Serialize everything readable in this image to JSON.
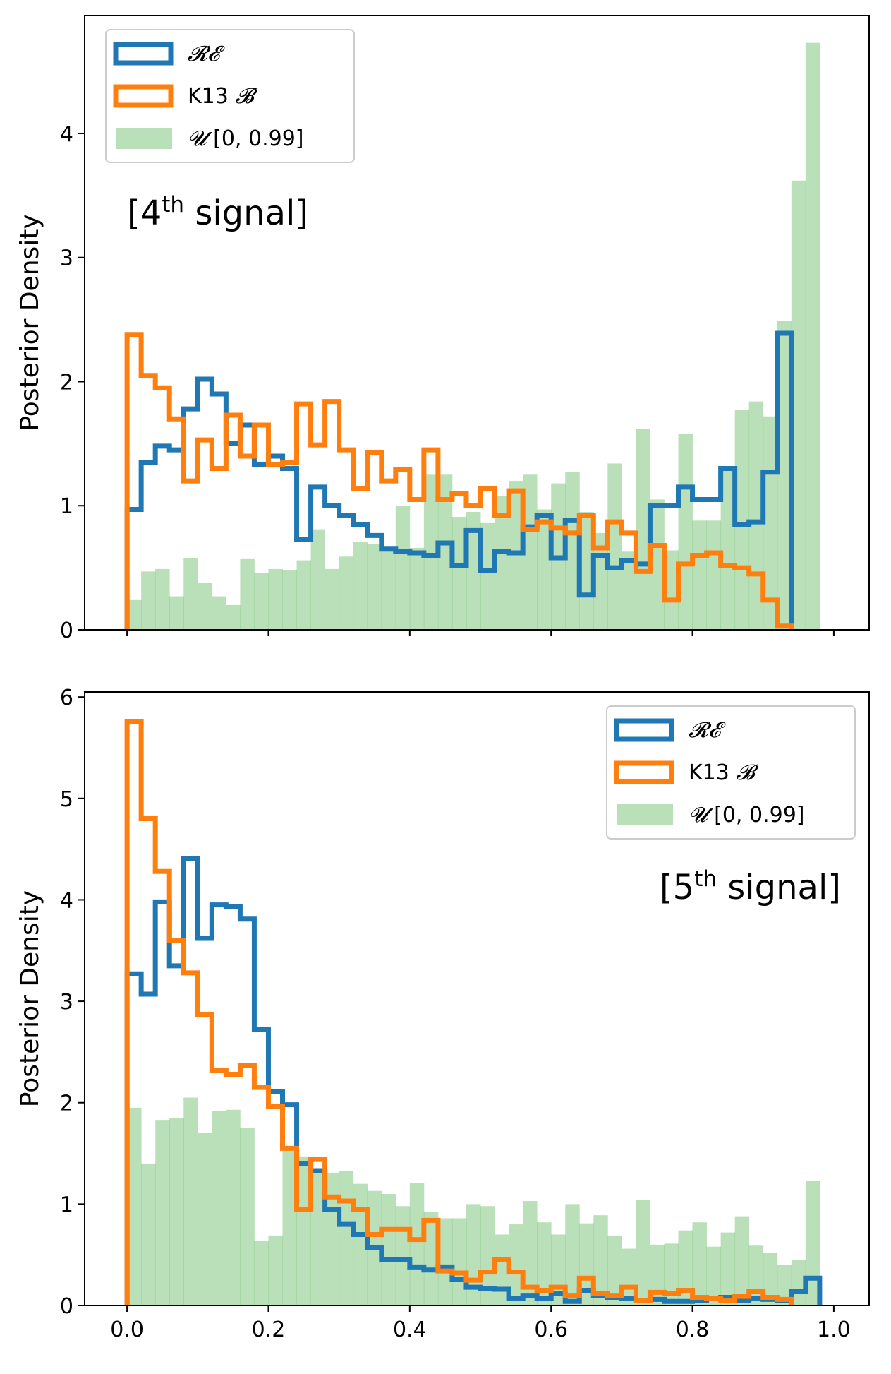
{
  "colors": {
    "re": "#1f77b4",
    "k13": "#ff7f0e",
    "uniform": "#2ca02c"
  },
  "chart_data": [
    {
      "type": "histogram",
      "title": "",
      "annotation": {
        "prefix": "[4",
        "sup": "th",
        "suffix": " signal]"
      },
      "xlabel": "",
      "ylabel": "Posterior Density",
      "xlim": [
        -0.06,
        1.05
      ],
      "ylim": [
        0,
        4.95
      ],
      "xticks": [
        0.0,
        0.2,
        0.4,
        0.6,
        0.8,
        1.0
      ],
      "show_xtick_labels": false,
      "yticks": [
        0,
        1,
        2,
        3,
        4
      ],
      "legend_position": "top-left",
      "legend": [
        {
          "key": "re",
          "label": "𝓡𝓔",
          "style": "step"
        },
        {
          "key": "k13",
          "label_prefix": "K13 ",
          "label_math": "𝓑",
          "style": "step"
        },
        {
          "key": "uniform",
          "label_math": "𝓤",
          "label_suffix": " [0, 0.99]",
          "style": "fill"
        }
      ],
      "series": [
        {
          "key": "re",
          "name": "𝓡𝓔",
          "histtype": "step",
          "bin_start": 0.0,
          "bin_width": 0.02,
          "values": [
            0.97,
            1.35,
            1.48,
            1.45,
            1.78,
            2.02,
            1.9,
            1.5,
            1.65,
            1.33,
            1.4,
            1.3,
            0.73,
            1.15,
            1.0,
            0.92,
            0.85,
            0.76,
            0.65,
            0.63,
            0.62,
            0.6,
            0.7,
            0.52,
            0.8,
            0.48,
            0.63,
            0.62,
            0.83,
            0.92,
            0.58,
            0.88,
            0.28,
            0.6,
            0.5,
            0.56,
            0.53,
            1.0,
            1.0,
            1.15,
            1.05,
            1.05,
            1.3,
            0.85,
            0.87,
            1.27,
            2.39
          ]
        },
        {
          "key": "k13",
          "name": "K13 𝓑",
          "histtype": "step",
          "bin_start": 0.0,
          "bin_width": 0.02,
          "values": [
            2.38,
            2.05,
            1.95,
            1.7,
            1.2,
            1.53,
            1.3,
            1.73,
            1.4,
            1.65,
            1.33,
            1.35,
            1.82,
            1.49,
            1.84,
            1.45,
            1.14,
            1.43,
            1.2,
            1.29,
            1.05,
            1.45,
            1.05,
            1.1,
            1.0,
            1.14,
            0.92,
            1.12,
            0.81,
            0.87,
            0.82,
            0.78,
            0.92,
            0.66,
            0.87,
            0.78,
            0.47,
            0.68,
            0.24,
            0.53,
            0.6,
            0.62,
            0.52,
            0.5,
            0.45,
            0.24,
            0.03
          ]
        },
        {
          "key": "uniform",
          "name": "𝓤 [0, 0.99]",
          "histtype": "stepfilled",
          "bin_start": 0.0,
          "bin_width": 0.02,
          "opacity": 0.33,
          "values": [
            0.24,
            0.47,
            0.49,
            0.27,
            0.58,
            0.38,
            0.27,
            0.2,
            0.57,
            0.46,
            0.49,
            0.48,
            0.56,
            0.81,
            0.49,
            0.59,
            0.71,
            0.69,
            0.64,
            1.0,
            0.66,
            1.25,
            1.25,
            0.91,
            0.95,
            0.86,
            1.08,
            1.2,
            1.25,
            0.97,
            1.18,
            1.27,
            0.95,
            0.78,
            1.34,
            0.63,
            1.62,
            1.05,
            0.64,
            1.58,
            0.88,
            0.88,
            1.31,
            1.77,
            1.84,
            1.72,
            2.49,
            3.62,
            4.73
          ]
        }
      ]
    },
    {
      "type": "histogram",
      "title": "",
      "annotation": {
        "prefix": "[5",
        "sup": "th",
        "suffix": " signal]"
      },
      "xlabel": "",
      "ylabel": "Posterior Density",
      "xlim": [
        -0.06,
        1.05
      ],
      "ylim": [
        0,
        6.05
      ],
      "xticks": [
        0.0,
        0.2,
        0.4,
        0.6,
        0.8,
        1.0
      ],
      "xtick_labels": [
        "0.0",
        "0.2",
        "0.4",
        "0.6",
        "0.8",
        "1.0"
      ],
      "show_xtick_labels": true,
      "yticks": [
        0,
        1,
        2,
        3,
        4,
        5,
        6
      ],
      "legend_position": "top-right",
      "legend": [
        {
          "key": "re",
          "label": "𝓡𝓔",
          "style": "step"
        },
        {
          "key": "k13",
          "label_prefix": "K13 ",
          "label_math": "𝓑",
          "style": "step"
        },
        {
          "key": "uniform",
          "label_math": "𝓤",
          "label_suffix": " [0, 0.99]",
          "style": "fill"
        }
      ],
      "series": [
        {
          "key": "re",
          "name": "𝓡𝓔",
          "histtype": "step",
          "bin_start": 0.0,
          "bin_width": 0.02,
          "values": [
            3.27,
            3.07,
            3.98,
            3.35,
            4.41,
            3.62,
            3.95,
            3.93,
            3.81,
            2.72,
            2.11,
            1.98,
            1.4,
            1.33,
            0.95,
            0.8,
            0.7,
            0.57,
            0.45,
            0.45,
            0.38,
            0.35,
            0.38,
            0.26,
            0.18,
            0.17,
            0.16,
            0.07,
            0.1,
            0.07,
            0.12,
            0.04,
            0.15,
            0.1,
            0.08,
            0.07,
            0.05,
            0.06,
            0.04,
            0.04,
            0.05,
            0.07,
            0.08,
            0.05,
            0.07,
            0.06,
            0.05,
            0.14,
            0.27
          ]
        },
        {
          "key": "k13",
          "name": "K13 𝓑",
          "histtype": "step",
          "bin_start": 0.0,
          "bin_width": 0.02,
          "values": [
            5.76,
            4.8,
            4.28,
            3.6,
            3.28,
            2.87,
            2.32,
            2.28,
            2.37,
            2.15,
            1.96,
            1.55,
            0.95,
            1.44,
            1.07,
            1.03,
            0.95,
            0.7,
            0.75,
            0.75,
            0.65,
            0.84,
            0.34,
            0.32,
            0.25,
            0.33,
            0.45,
            0.33,
            0.18,
            0.15,
            0.18,
            0.1,
            0.27,
            0.12,
            0.1,
            0.18,
            0.05,
            0.13,
            0.12,
            0.15,
            0.08,
            0.07,
            0.05,
            0.09,
            0.14,
            0.08,
            0.06
          ]
        },
        {
          "key": "uniform",
          "name": "𝓤 [0, 0.99]",
          "histtype": "stepfilled",
          "bin_start": 0.0,
          "bin_width": 0.02,
          "opacity": 0.33,
          "values": [
            1.95,
            1.4,
            1.83,
            1.85,
            2.05,
            1.7,
            1.92,
            1.93,
            1.75,
            0.64,
            0.69,
            1.56,
            1.47,
            1.33,
            1.31,
            1.33,
            1.2,
            1.13,
            1.1,
            0.98,
            1.21,
            0.92,
            0.86,
            0.86,
            1.0,
            0.98,
            0.7,
            0.8,
            1.03,
            0.82,
            0.7,
            1.0,
            0.81,
            0.89,
            0.69,
            0.56,
            1.04,
            0.6,
            0.61,
            0.74,
            0.82,
            0.58,
            0.72,
            0.88,
            0.59,
            0.52,
            0.4,
            0.45,
            1.23
          ]
        }
      ]
    }
  ]
}
